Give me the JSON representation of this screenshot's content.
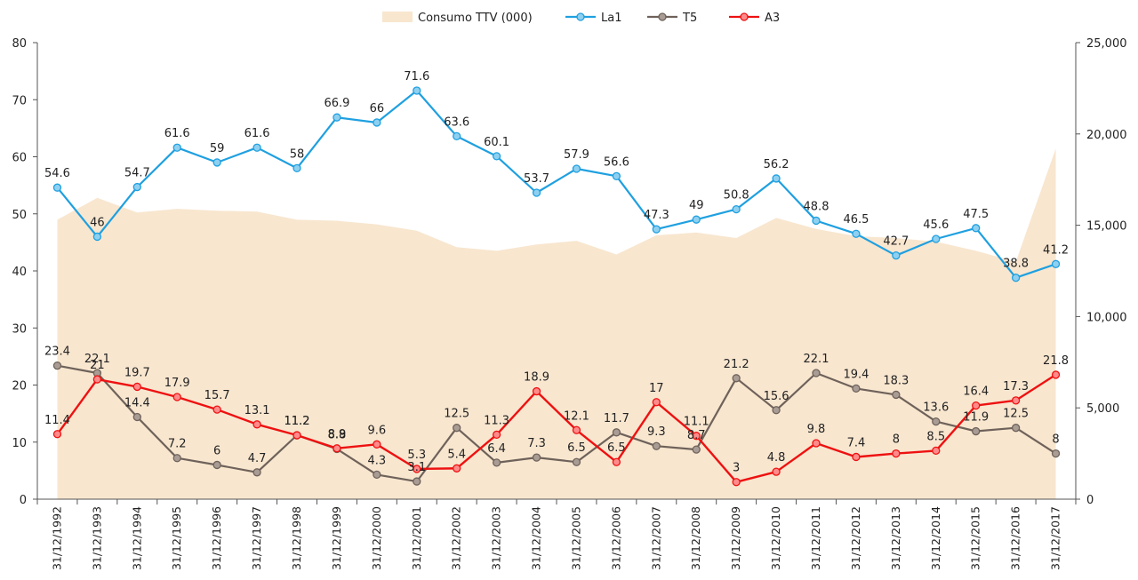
{
  "chart_data": {
    "type": "line",
    "categories": [
      "31/12/1992",
      "31/12/1993",
      "31/12/1994",
      "31/12/1995",
      "31/12/1996",
      "31/12/1997",
      "31/12/1998",
      "31/12/1999",
      "31/12/2000",
      "31/12/2001",
      "31/12/2002",
      "31/12/2003",
      "31/12/2004",
      "31/12/2005",
      "31/12/2006",
      "31/12/2007",
      "31/12/2008",
      "31/12/2009",
      "31/12/2010",
      "31/12/2011",
      "31/12/2012",
      "31/12/2013",
      "31/12/2014",
      "31/12/2015",
      "31/12/2016",
      "31/12/2017"
    ],
    "y_left": {
      "min": 0,
      "max": 80,
      "step": 10
    },
    "y_right": {
      "min": 0,
      "max": 25000,
      "step": 5000
    },
    "area": {
      "name": "Consumo TTV (000)",
      "axis": "right",
      "color": "#f8e6cf",
      "values": [
        15300,
        16500,
        15700,
        15900,
        15800,
        15750,
        15300,
        15250,
        15050,
        14700,
        13800,
        13600,
        13950,
        14150,
        13400,
        14450,
        14600,
        14300,
        15400,
        14800,
        14400,
        14300,
        14100,
        13600,
        13000,
        19200
      ]
    },
    "series": [
      {
        "name": "La1",
        "axis": "left",
        "color": "#1fa0e0",
        "marker_fill": "#8fd0f0",
        "values": [
          54.6,
          46,
          54.7,
          61.6,
          59,
          61.6,
          58,
          66.9,
          66,
          71.6,
          63.6,
          60.1,
          53.7,
          57.9,
          56.6,
          47.3,
          49,
          50.8,
          56.2,
          48.8,
          46.5,
          42.7,
          45.6,
          47.5,
          38.8,
          41.2
        ]
      },
      {
        "name": "T5",
        "axis": "left",
        "color": "#6e625a",
        "marker_fill": "#a89c94",
        "values": [
          23.4,
          22.1,
          14.4,
          7.2,
          6,
          4.7,
          11.2,
          8.8,
          4.3,
          3.1,
          12.5,
          6.4,
          7.3,
          6.5,
          11.7,
          9.3,
          8.7,
          21.2,
          15.6,
          22.1,
          19.4,
          18.3,
          13.6,
          11.9,
          12.5,
          8
        ]
      },
      {
        "name": "A3",
        "axis": "left",
        "color": "#ee1111",
        "marker_fill": "#ff8a8a",
        "values": [
          11.4,
          21,
          19.7,
          17.9,
          15.7,
          13.1,
          11.2,
          8.9,
          9.6,
          5.3,
          5.4,
          11.3,
          18.9,
          12.1,
          6.5,
          17,
          11.1,
          3,
          4.8,
          9.8,
          7.4,
          8,
          8.5,
          16.4,
          17.3,
          21.8
        ]
      }
    ],
    "labels": {
      "La1": [
        "54.6",
        "46",
        "54.7",
        "61.6",
        "59",
        "61.6",
        "58",
        "66.9",
        "66",
        "71.6",
        "63.6",
        "60.1",
        "53.7",
        "57.9",
        "56.6",
        "47.3",
        "49",
        "50.8",
        "56.2",
        "48.8",
        "46.5",
        "42.7",
        "45.6",
        "47.5",
        "38.8",
        "41.2"
      ],
      "T5": [
        "23.4",
        "22.1",
        "14.4",
        "7.2",
        "6",
        "4.7",
        "11.2",
        "8.8",
        "4.3",
        "3.1",
        "12.5",
        "6.4",
        "7.3",
        "6.5",
        "11.7",
        "9.3",
        "8.7",
        "21.2",
        "15.6",
        "22.1",
        "19.4",
        "18.3",
        "13.6",
        "11.9",
        "12.5",
        "8"
      ],
      "A3": [
        "11.4",
        "21",
        "19.7",
        "17.9",
        "15.7",
        "13.1",
        "11.2",
        "8.9",
        "9.6",
        "5.3",
        "5.4",
        "11.3",
        "18.9",
        "12.1",
        "6.5",
        "17",
        "11.1",
        "3",
        "4.8",
        "9.8",
        "7.4",
        "8",
        "8.5",
        "16.4",
        "17.3",
        "21.8"
      ]
    },
    "legend": [
      "Consumo TTV (000)",
      "La1",
      "T5",
      "A3"
    ],
    "y_left_ticks": [
      "0",
      "10",
      "20",
      "30",
      "40",
      "50",
      "60",
      "70",
      "80"
    ],
    "y_right_ticks": [
      "0",
      "5,000",
      "10,000",
      "15,000",
      "20,000",
      "25,000"
    ],
    "legend_position": "top",
    "grid": false
  }
}
